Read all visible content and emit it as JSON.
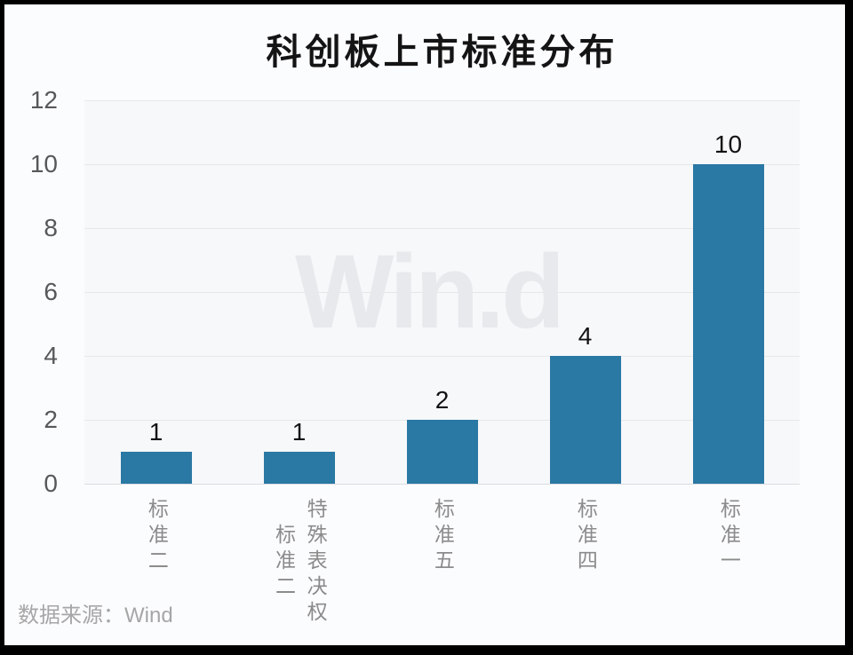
{
  "header": {
    "title": "科创板上市标准分布"
  },
  "watermark": {
    "text": "Win.d"
  },
  "footer": {
    "source": "数据来源：Wind"
  },
  "colors": {
    "page_background": "#fbfcfe",
    "plot_background": "#f7f8fa",
    "frame": "#000000",
    "bar": "#2a78a4",
    "grid": "#e6e7e9",
    "baseline": "#dcdde0",
    "watermark": "#e8e9ec",
    "y_tick_label": "#57585a",
    "x_tick_label": "#8b8b8b",
    "source_text": "#a6a6a6"
  },
  "chart_data": {
    "type": "bar",
    "title": "科创板上市标准分布",
    "categories": [
      "标准二",
      "特殊表决权\n标准二",
      "标准五",
      "标准四",
      "标准一"
    ],
    "values": [
      1,
      1,
      2,
      4,
      10
    ],
    "data_labels": [
      "1",
      "1",
      "2",
      "4",
      "10"
    ],
    "xlabel": "",
    "ylabel": "",
    "ylim": [
      0,
      12
    ],
    "yticks": [
      0,
      2,
      4,
      6,
      8,
      10,
      12
    ],
    "grid": true,
    "legend": false,
    "x_label_orientation": "vertical",
    "source": "数据来源：Wind",
    "watermark": "Win.d"
  }
}
